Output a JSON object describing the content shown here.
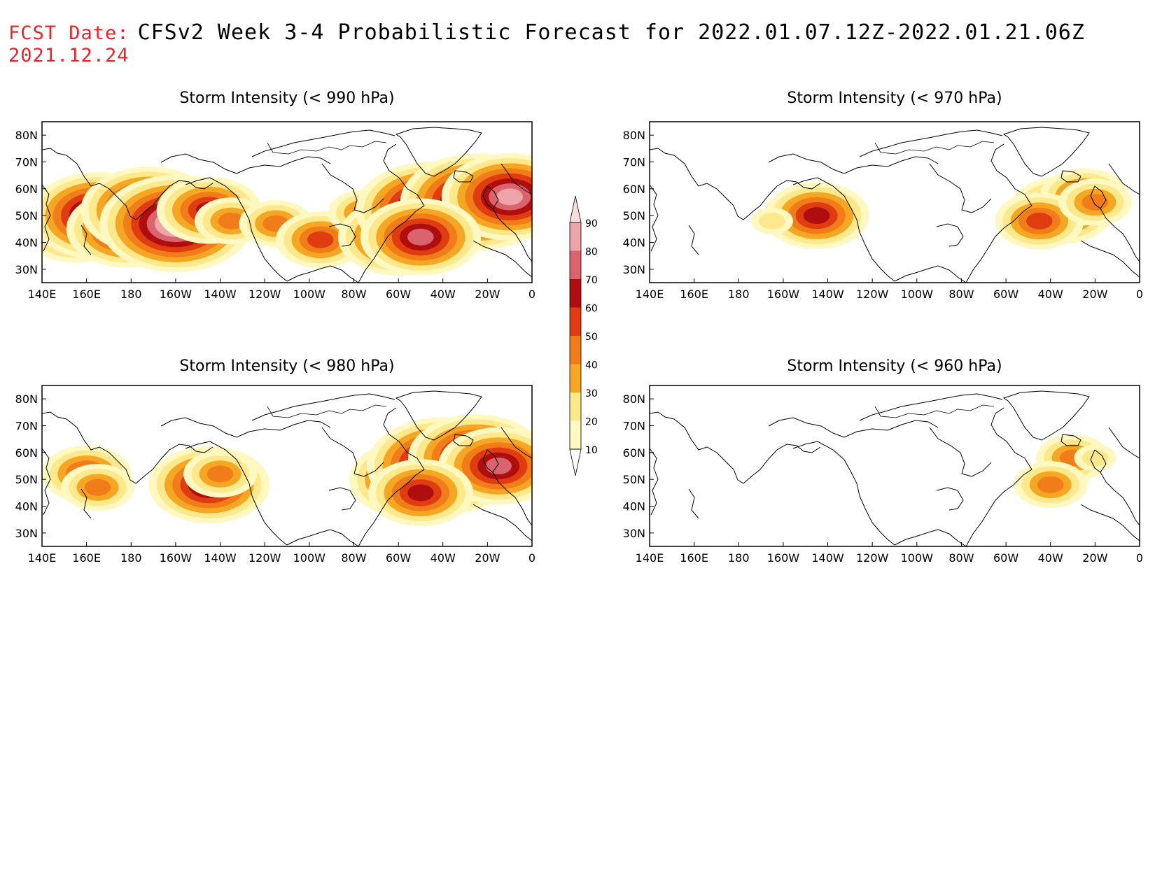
{
  "header": {
    "fcst_label": "FCST Date:",
    "title": "CFSv2 Week 3-4 Probabilistic Forecast for 2022.01.07.12Z-2022.01.21.06Z",
    "fcst_date": "2021.12.24"
  },
  "axes": {
    "lon_labels": [
      "140E",
      "160E",
      "180",
      "160W",
      "140W",
      "120W",
      "100W",
      "80W",
      "60W",
      "40W",
      "20W",
      "0"
    ],
    "lat_labels": [
      "80N",
      "70N",
      "60N",
      "50N",
      "40N",
      "30N"
    ]
  },
  "colorbar": {
    "levels": [
      "10",
      "20",
      "30",
      "40",
      "50",
      "60",
      "70",
      "80",
      "90"
    ],
    "colors": [
      "#fff8c0",
      "#fde98c",
      "#f5a623",
      "#f07d1a",
      "#e03c12",
      "#b00e0e",
      "#d9646e",
      "#eda5ab",
      "#fbdde0"
    ]
  },
  "panels": [
    {
      "id": "p990",
      "title": "Storm Intensity (< 990 hPa)",
      "threshold_hpa": 990
    },
    {
      "id": "p970",
      "title": "Storm Intensity (< 970 hPa)",
      "threshold_hpa": 970
    },
    {
      "id": "p980",
      "title": "Storm Intensity (< 980 hPa)",
      "threshold_hpa": 980
    },
    {
      "id": "p960",
      "title": "Storm Intensity (< 960 hPa)",
      "threshold_hpa": 960
    }
  ],
  "probability_regions": {
    "p990": [
      {
        "lon": 155,
        "lat": 45,
        "level": 5
      },
      {
        "lon": 165,
        "lat": 50,
        "level": 7
      },
      {
        "lon": 178,
        "lat": 45,
        "level": 6
      },
      {
        "lon": -172,
        "lat": 52,
        "level": 7
      },
      {
        "lon": -160,
        "lat": 47,
        "level": 8
      },
      {
        "lon": -145,
        "lat": 52,
        "level": 5
      },
      {
        "lon": -135,
        "lat": 48,
        "level": 3
      },
      {
        "lon": -115,
        "lat": 47,
        "level": 3
      },
      {
        "lon": -95,
        "lat": 41,
        "level": 4
      },
      {
        "lon": -75,
        "lat": 51,
        "level": 3
      },
      {
        "lon": -60,
        "lat": 42,
        "level": 6
      },
      {
        "lon": -45,
        "lat": 52,
        "level": 8
      },
      {
        "lon": -25,
        "lat": 55,
        "level": 8
      },
      {
        "lon": -10,
        "lat": 57,
        "level": 7
      },
      {
        "lon": -50,
        "lat": 42,
        "level": 6
      }
    ],
    "p970": [
      {
        "lon": -35,
        "lat": 52,
        "level": 5
      },
      {
        "lon": -25,
        "lat": 57,
        "level": 4
      },
      {
        "lon": -45,
        "lat": 48,
        "level": 4
      },
      {
        "lon": -20,
        "lat": 55,
        "level": 3
      },
      {
        "lon": -145,
        "lat": 50,
        "level": 5
      },
      {
        "lon": -165,
        "lat": 48,
        "level": 1
      }
    ],
    "p980": [
      {
        "lon": 160,
        "lat": 52,
        "level": 4
      },
      {
        "lon": 165,
        "lat": 47,
        "level": 3
      },
      {
        "lon": -145,
        "lat": 48,
        "level": 6
      },
      {
        "lon": -140,
        "lat": 52,
        "level": 3
      },
      {
        "lon": -55,
        "lat": 50,
        "level": 6
      },
      {
        "lon": -40,
        "lat": 55,
        "level": 8
      },
      {
        "lon": -25,
        "lat": 58,
        "level": 7
      },
      {
        "lon": -15,
        "lat": 55,
        "level": 6
      },
      {
        "lon": -50,
        "lat": 45,
        "level": 5
      }
    ],
    "p960": [
      {
        "lon": -35,
        "lat": 52,
        "level": 2
      },
      {
        "lon": -30,
        "lat": 58,
        "level": 3
      },
      {
        "lon": -40,
        "lat": 48,
        "level": 3
      },
      {
        "lon": -20,
        "lat": 58,
        "level": 1
      }
    ]
  }
}
